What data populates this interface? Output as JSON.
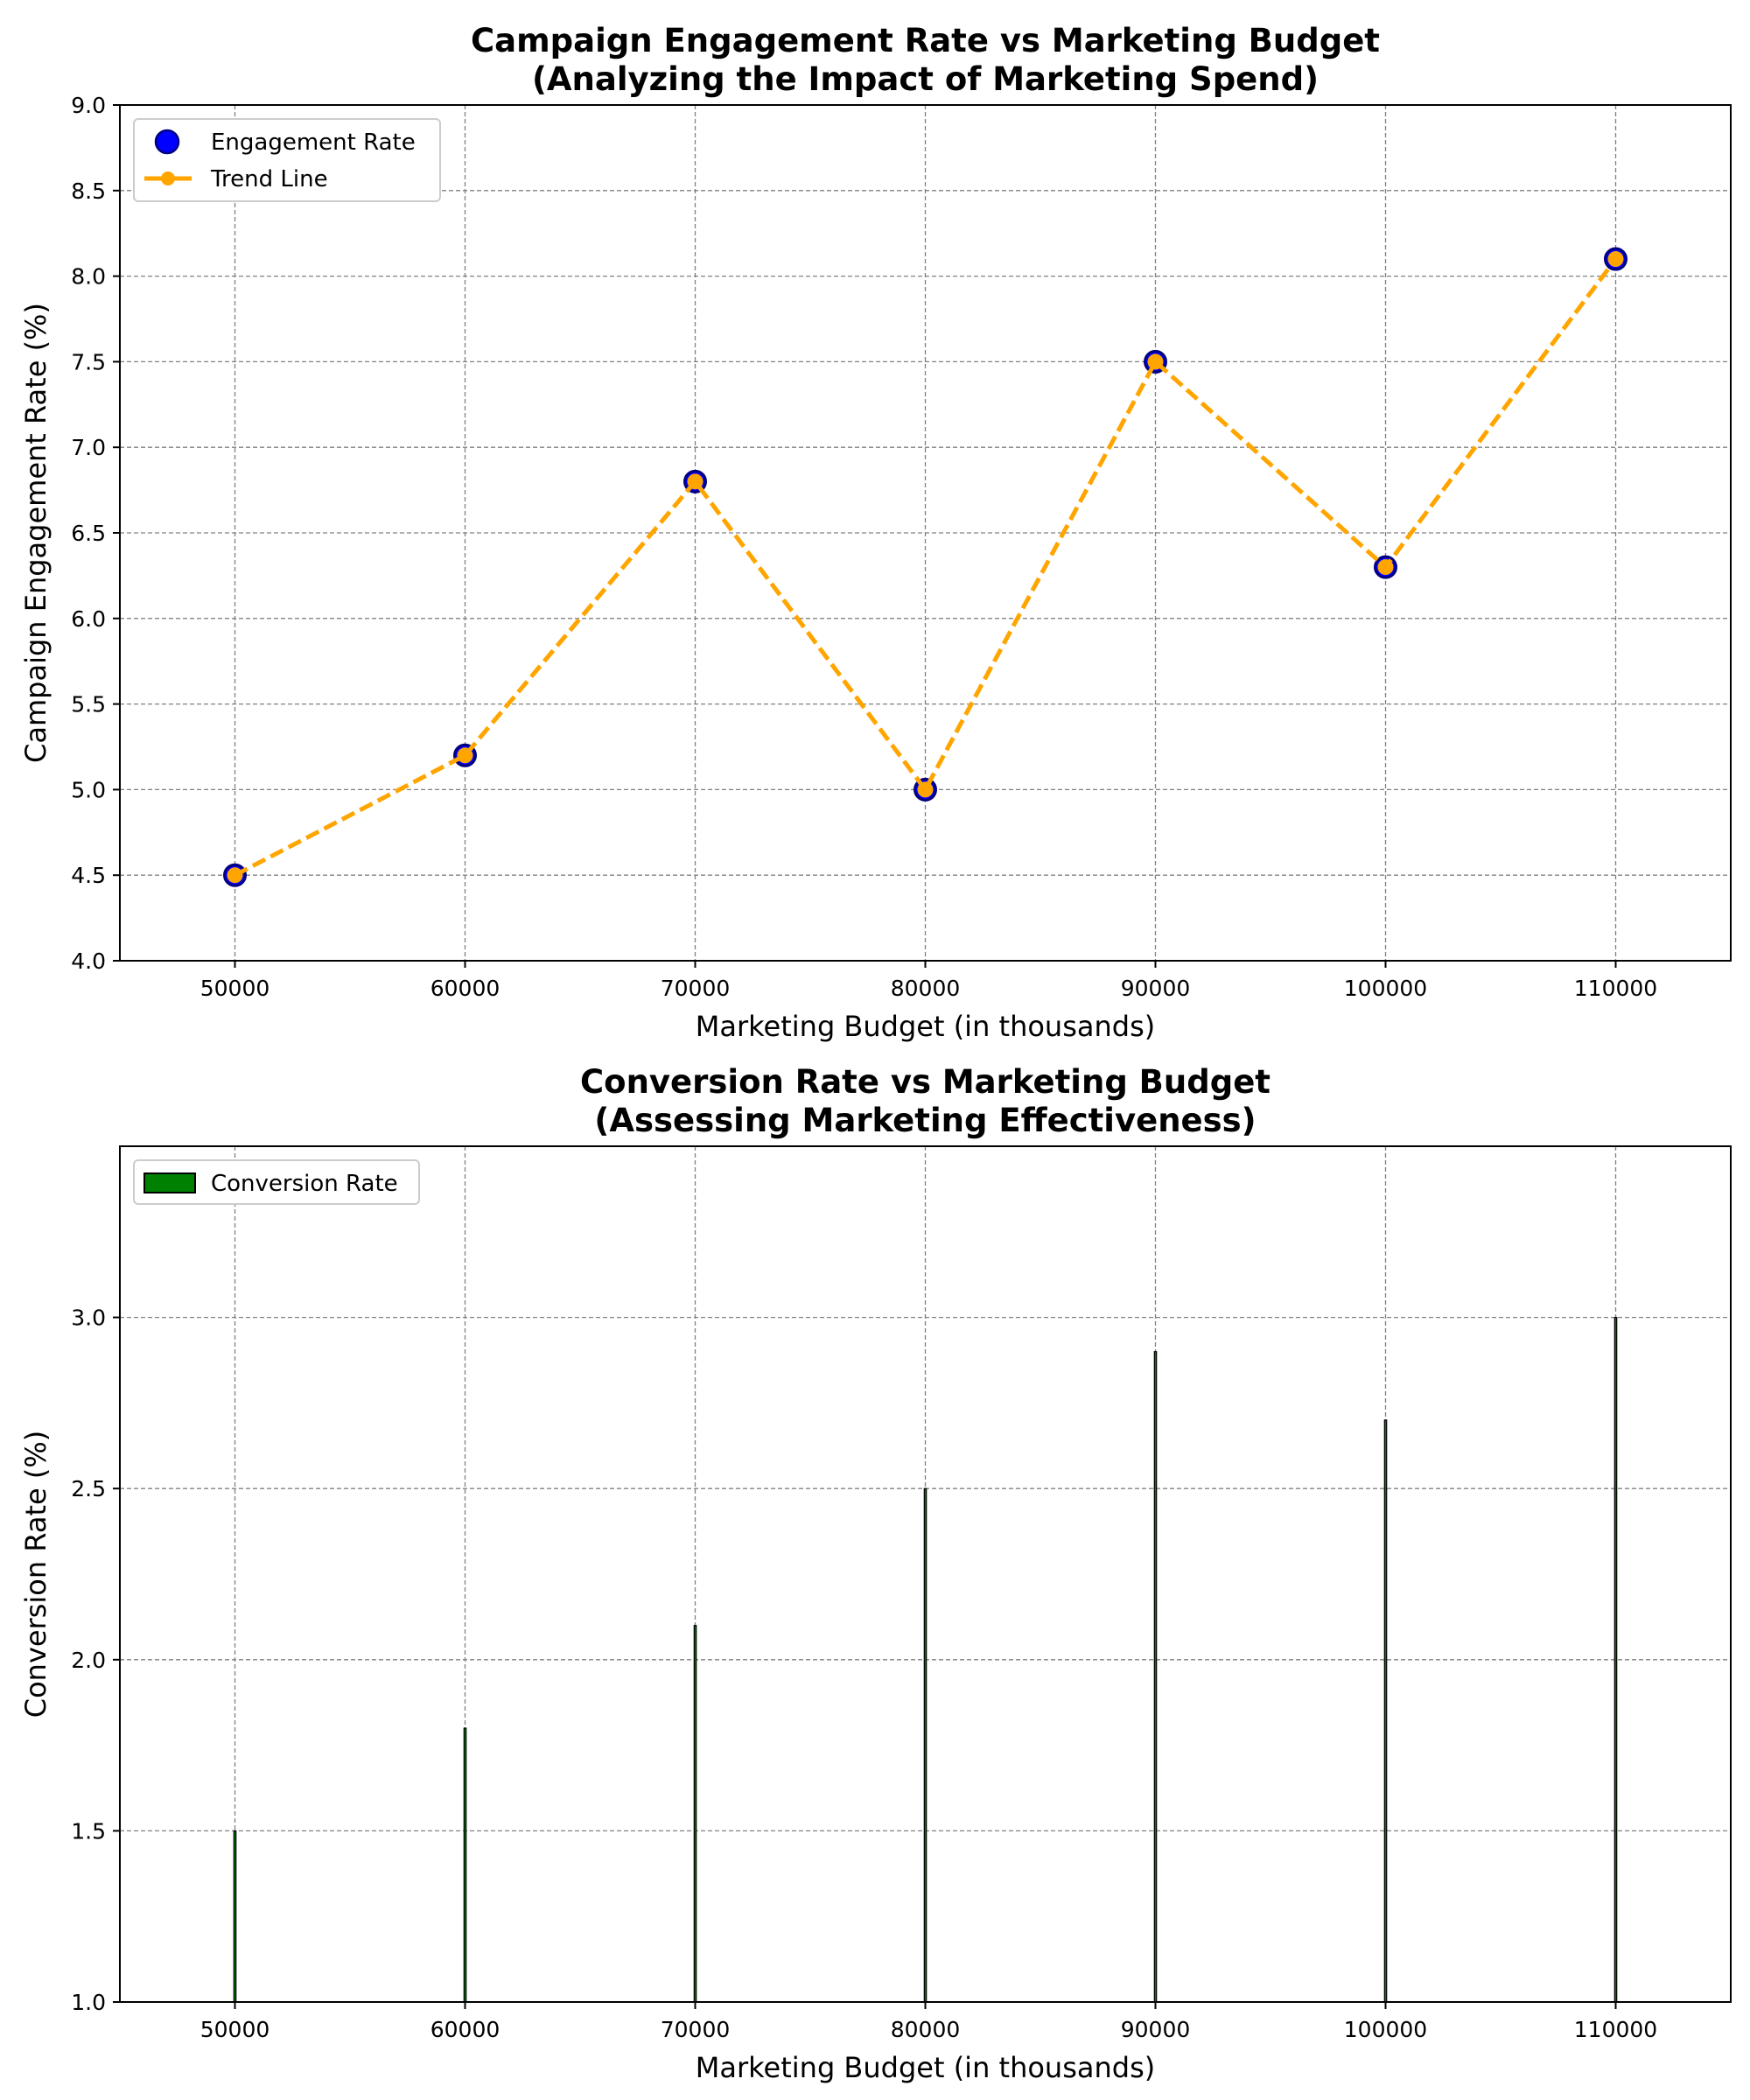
{
  "chart_data": [
    {
      "type": "line",
      "title": "Campaign Engagement Rate vs Marketing Budget\n(Analyzing the Impact of Marketing Spend)",
      "xlabel": "Marketing Budget (in thousands)",
      "ylabel": "Campaign Engagement Rate (%)",
      "xlim": [
        45000,
        115000
      ],
      "ylim": [
        4.0,
        9.0
      ],
      "xticks": [
        50000,
        60000,
        70000,
        80000,
        90000,
        100000,
        110000
      ],
      "yticks": [
        4.0,
        4.5,
        5.0,
        5.5,
        6.0,
        6.5,
        7.0,
        7.5,
        8.0,
        8.5,
        9.0
      ],
      "grid": true,
      "legend_position": "top-left",
      "x": [
        50000,
        60000,
        70000,
        80000,
        90000,
        100000,
        110000
      ],
      "series": [
        {
          "name": "Engagement Rate",
          "kind": "scatter",
          "values": [
            4.5,
            5.2,
            6.8,
            5.0,
            7.5,
            6.3,
            8.1
          ],
          "color": "#0000ff",
          "edgecolor": "#000080"
        },
        {
          "name": "Trend Line",
          "kind": "line",
          "style": "dashed",
          "values": [
            4.5,
            5.2,
            6.8,
            5.0,
            7.5,
            6.3,
            8.1
          ],
          "color": "#ffa500"
        }
      ]
    },
    {
      "type": "bar",
      "title": "Conversion Rate vs Marketing Budget\n(Assessing Marketing Effectiveness)",
      "xlabel": "Marketing Budget (in thousands)",
      "ylabel": "Conversion Rate (%)",
      "xlim": [
        45000,
        115000
      ],
      "ylim": [
        1.0,
        3.5
      ],
      "xticks": [
        50000,
        60000,
        70000,
        80000,
        90000,
        100000,
        110000
      ],
      "yticks": [
        1.0,
        1.5,
        2.0,
        2.5,
        3.0
      ],
      "grid": true,
      "legend_position": "top-left",
      "x": [
        50000,
        60000,
        70000,
        80000,
        90000,
        100000,
        110000
      ],
      "series": [
        {
          "name": "Conversion Rate",
          "values": [
            1.5,
            1.8,
            2.1,
            2.5,
            2.9,
            2.7,
            3.0
          ],
          "color": "#008000",
          "edgecolor": "#000000"
        }
      ]
    }
  ]
}
